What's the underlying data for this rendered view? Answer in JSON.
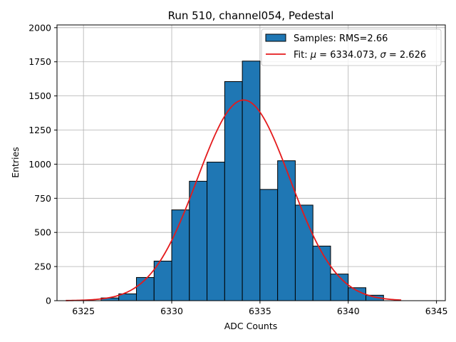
{
  "chart_data": {
    "type": "bar",
    "title": "Run 510, channel054, Pedestal",
    "xlabel": "ADC Counts",
    "ylabel": "Entries",
    "xlim": [
      6323.5,
      6345.5
    ],
    "ylim": [
      0,
      2020
    ],
    "xticks": [
      6325,
      6330,
      6335,
      6340,
      6345
    ],
    "yticks": [
      0,
      250,
      500,
      750,
      1000,
      1250,
      1500,
      1750,
      2000
    ],
    "grid": true,
    "bar_color": "#1f77b4",
    "fit_color": "#e41a1c",
    "histogram": {
      "name": "Samples: RMS=2.66",
      "bin_width": 1,
      "bin_edges_start": [
        6326,
        6327,
        6328,
        6329,
        6330,
        6331,
        6332,
        6333,
        6334,
        6335,
        6336,
        6337,
        6338,
        6339,
        6340,
        6341
      ],
      "values": [
        20,
        50,
        170,
        290,
        665,
        875,
        1015,
        1605,
        1755,
        815,
        1025,
        700,
        400,
        195,
        95,
        40
      ]
    },
    "fit": {
      "name_prefix": "Fit: ",
      "mu_symbol": "μ",
      "mu_text": " = 6334.073, ",
      "sigma_symbol": "σ",
      "sigma_text": " = 2.626",
      "mu": 6334.073,
      "sigma": 2.626,
      "amplitude": 1470,
      "x_range": [
        6324,
        6343
      ]
    },
    "legend_position": "top-right"
  }
}
